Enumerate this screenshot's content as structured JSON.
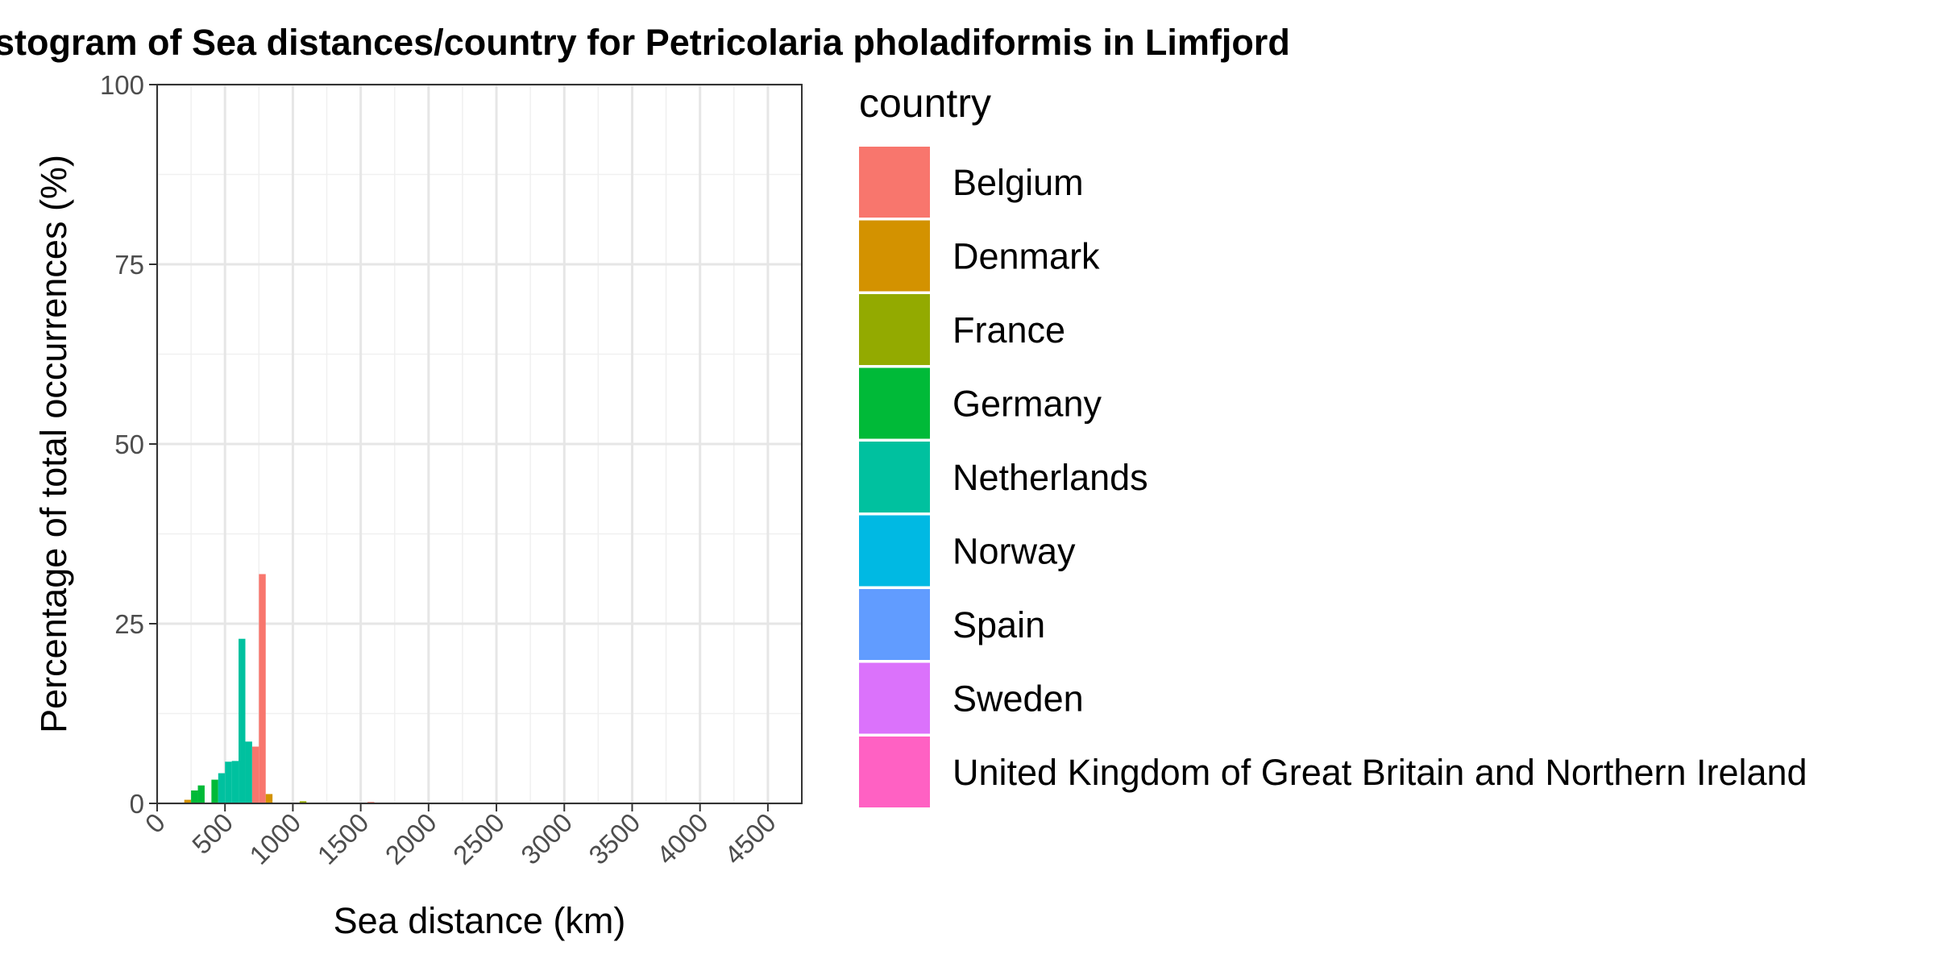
{
  "chart_data": {
    "type": "bar",
    "title": "Histogram of Sea distances/country for Petricolaria pholadiformis in Limfjord",
    "xlabel": "Sea distance (km)",
    "ylabel": "Percentage of total occurrences (%)",
    "xlim": [
      0,
      4750
    ],
    "ylim": [
      0,
      100
    ],
    "x_ticks": [
      "0",
      "500",
      "1000",
      "1500",
      "2000",
      "2500",
      "3000",
      "3500",
      "4000",
      "4500"
    ],
    "y_ticks": [
      "0",
      "25",
      "50",
      "75",
      "100"
    ],
    "bin_width": 50,
    "grid": true,
    "legend": {
      "title": "country",
      "position": "right",
      "entries": [
        {
          "name": "Belgium",
          "color": "#F8766D"
        },
        {
          "name": "Denmark",
          "color": "#D39200"
        },
        {
          "name": "France",
          "color": "#93AA00"
        },
        {
          "name": "Germany",
          "color": "#00BA38"
        },
        {
          "name": "Netherlands",
          "color": "#00C19F"
        },
        {
          "name": "Norway",
          "color": "#00B9E3"
        },
        {
          "name": "Spain",
          "color": "#619CFF"
        },
        {
          "name": "Sweden",
          "color": "#DB72FB"
        },
        {
          "name": "United Kingdom of Great Britain and Northern Ireland",
          "color": "#FF61C3"
        }
      ]
    },
    "bars": [
      {
        "x": 225,
        "value": 0.5,
        "series": "Denmark"
      },
      {
        "x": 275,
        "value": 1.8,
        "series": "Germany"
      },
      {
        "x": 325,
        "value": 2.5,
        "series": "Germany"
      },
      {
        "x": 425,
        "value": 3.3,
        "series": "Germany"
      },
      {
        "x": 475,
        "value": 4.2,
        "series": "Netherlands"
      },
      {
        "x": 525,
        "value": 5.8,
        "series": "Netherlands"
      },
      {
        "x": 575,
        "value": 5.9,
        "series": "Netherlands"
      },
      {
        "x": 625,
        "value": 22.9,
        "series": "Netherlands"
      },
      {
        "x": 675,
        "value": 8.6,
        "series": "Netherlands"
      },
      {
        "x": 725,
        "value": 7.9,
        "series": "Belgium"
      },
      {
        "x": 775,
        "value": 31.9,
        "series": "Belgium"
      },
      {
        "x": 825,
        "value": 1.3,
        "series": "Denmark"
      },
      {
        "x": 1075,
        "value": 0.3,
        "series": "France"
      },
      {
        "x": 1575,
        "value": 0.2,
        "series": "Belgium"
      }
    ]
  }
}
